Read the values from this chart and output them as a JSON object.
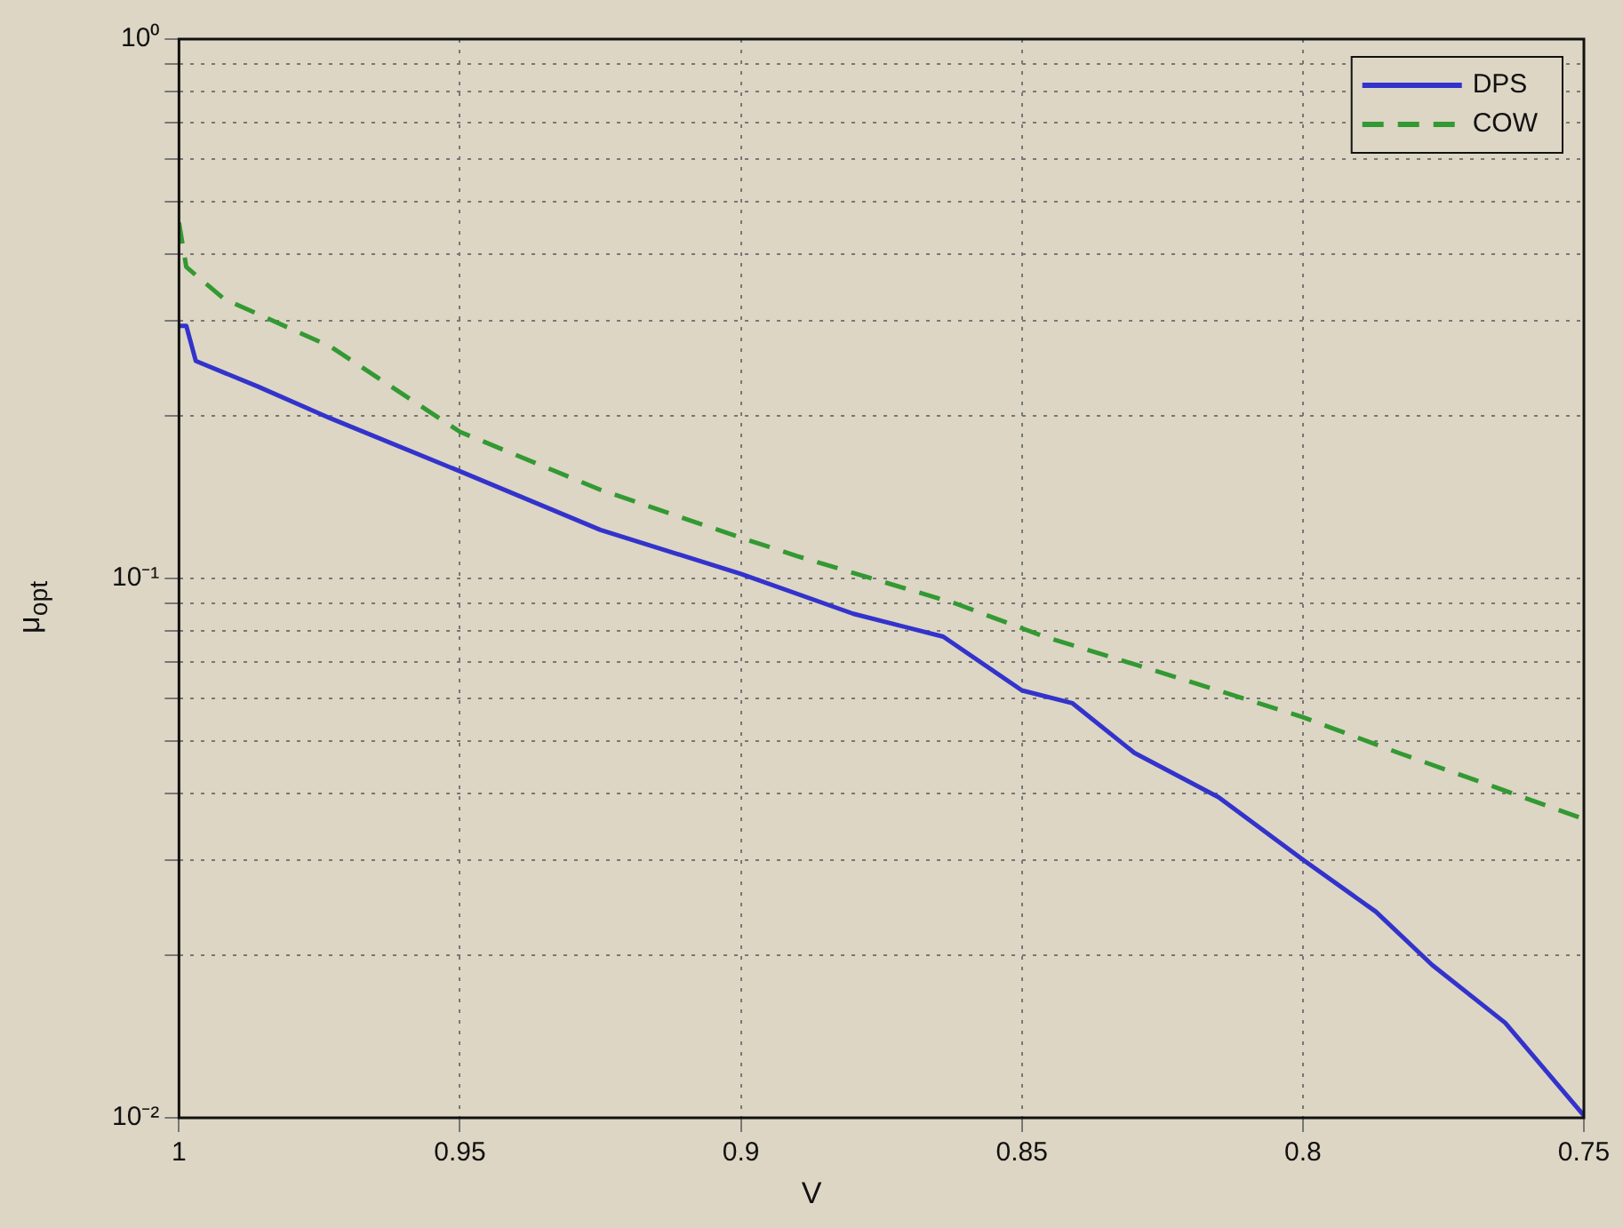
{
  "chart_data": {
    "type": "line",
    "xlabel": "V",
    "ylabel": "μ$_{opt}$",
    "log": "y",
    "grid": true,
    "legend": "top right",
    "xlim": [
      1,
      0.75
    ],
    "xticks": [
      1,
      0.95,
      0.9,
      0.85,
      0.8,
      0.75
    ],
    "ylim": [
      0.01,
      1
    ],
    "yticks": [
      {
        "value": 0.01,
        "label": "10⁻²"
      },
      {
        "value": 0.02,
        "label": null
      },
      {
        "value": 0.03,
        "label": null
      },
      {
        "value": 0.04,
        "label": null
      },
      {
        "value": 0.05,
        "label": null
      },
      {
        "value": 0.06,
        "label": null
      },
      {
        "value": 0.07,
        "label": null
      },
      {
        "value": 0.08,
        "label": null
      },
      {
        "value": 0.09,
        "label": null
      },
      {
        "value": 0.1,
        "label": "10⁻¹"
      },
      {
        "value": 0.2,
        "label": null
      },
      {
        "value": 0.3,
        "label": null
      },
      {
        "value": 0.4,
        "label": null
      },
      {
        "value": 0.5,
        "label": null
      },
      {
        "value": 0.6,
        "label": null
      },
      {
        "value": 0.7,
        "label": null
      },
      {
        "value": 0.8,
        "label": null
      },
      {
        "value": 0.9,
        "label": null
      },
      {
        "value": 1,
        "label": "10⁰"
      }
    ],
    "series": [
      {
        "name": "DPS",
        "color": "#3333cc",
        "line_style": "solid",
        "x": [
          1,
          0.9987,
          0.997,
          0.986,
          0.973,
          0.95,
          0.925,
          0.9,
          0.88,
          0.864,
          0.85,
          0.841,
          0.83,
          0.815,
          0.8,
          0.787,
          0.777,
          0.764,
          0.75
        ],
        "values": [
          0.294,
          0.294,
          0.253,
          0.227,
          0.198,
          0.158,
          0.123,
          0.102,
          0.086,
          0.078,
          0.062,
          0.0587,
          0.0475,
          0.0393,
          0.0301,
          0.0241,
          0.0192,
          0.015,
          0.0101
        ]
      },
      {
        "name": "COW",
        "color": "#339933",
        "line_style": "dashed",
        "x": [
          1,
          0.9987,
          0.992,
          0.973,
          0.95,
          0.925,
          0.9,
          0.89,
          0.862,
          0.846,
          0.826,
          0.8,
          0.783,
          0.766,
          0.75
        ],
        "values": [
          0.457,
          0.378,
          0.33,
          0.269,
          0.187,
          0.146,
          0.119,
          0.11,
          0.09,
          0.078,
          0.0673,
          0.0553,
          0.0475,
          0.0411,
          0.0358
        ]
      }
    ]
  }
}
